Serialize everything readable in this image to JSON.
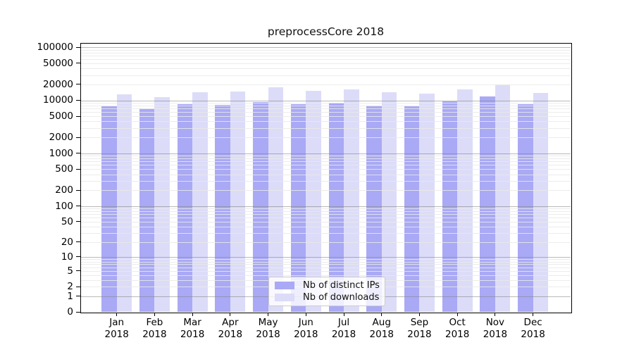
{
  "chart_data": {
    "type": "bar",
    "title": "preprocessCore 2018",
    "year_label": "2018",
    "categories": [
      "Jan",
      "Feb",
      "Mar",
      "Apr",
      "May",
      "Jun",
      "Jul",
      "Aug",
      "Sep",
      "Oct",
      "Nov",
      "Dec"
    ],
    "series": [
      {
        "name": "Nb of distinct IPs",
        "color": "#a9a9f5",
        "values": [
          7600,
          7100,
          8500,
          8200,
          9300,
          8400,
          9000,
          8000,
          7600,
          9500,
          12000,
          8500
        ]
      },
      {
        "name": "Nb of downloads",
        "color": "#dcdcf9",
        "values": [
          12900,
          11400,
          14400,
          14700,
          17700,
          15100,
          16100,
          14300,
          13500,
          16100,
          19700,
          13900
        ]
      }
    ],
    "y_axis": {
      "scale": "log10(1+x)",
      "ticks": [
        0,
        1,
        2,
        5,
        10,
        20,
        50,
        100,
        200,
        500,
        1000,
        2000,
        5000,
        10000,
        20000,
        50000,
        100000
      ],
      "min": 0,
      "max": 100000
    },
    "grid": {
      "major_color": "#b0b0b0",
      "minor_color": "#e9e9e9",
      "minor_subs": [
        2,
        3,
        4,
        5,
        6,
        7,
        8,
        9
      ]
    },
    "legend_position": "bottom-center"
  }
}
